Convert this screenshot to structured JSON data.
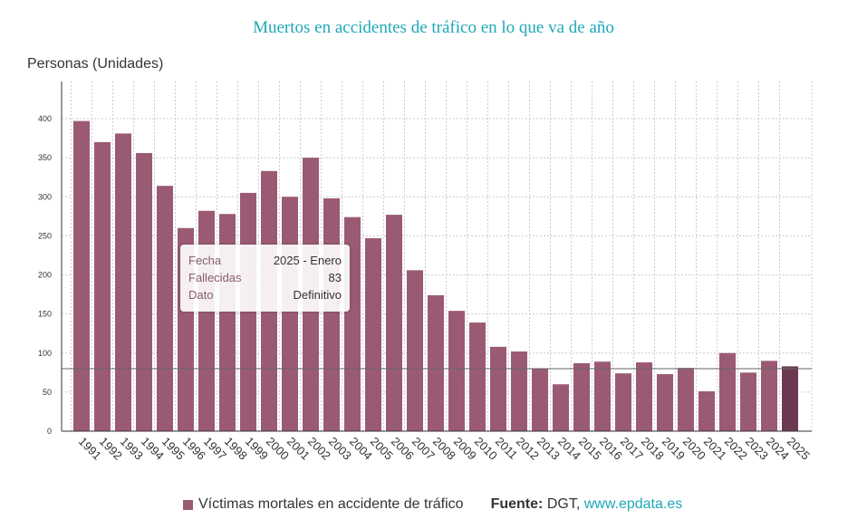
{
  "chart_data": {
    "type": "bar",
    "title": "Muertos en accidentes de tráfico en lo que va de año",
    "ylabel": "Personas (Unidades)",
    "xlabel": "",
    "ylim": [
      0,
      450
    ],
    "yticks": [
      0,
      50,
      100,
      150,
      200,
      250,
      300,
      350,
      400
    ],
    "grid": true,
    "categories": [
      "1991",
      "1992",
      "1993",
      "1994",
      "1995",
      "1996",
      "1997",
      "1998",
      "1999",
      "2000",
      "2001",
      "2002",
      "2003",
      "2004",
      "2005",
      "2006",
      "2007",
      "2008",
      "2009",
      "2010",
      "2011",
      "2012",
      "2013",
      "2014",
      "2015",
      "2016",
      "2017",
      "2018",
      "2019",
      "2020",
      "2021",
      "2022",
      "2023",
      "2024",
      "2025"
    ],
    "values": [
      397,
      370,
      381,
      356,
      314,
      260,
      282,
      278,
      305,
      333,
      300,
      350,
      298,
      274,
      247,
      277,
      206,
      174,
      154,
      139,
      108,
      102,
      80,
      60,
      87,
      89,
      74,
      88,
      73,
      81,
      51,
      100,
      75,
      90,
      83
    ],
    "reference_line": 80,
    "highlighted_category": "2025",
    "colors": {
      "bar": "#9a5a74",
      "highlight": "#6b3a52",
      "title": "#1fa8b8"
    },
    "series": [
      {
        "name": "Víctimas mortales en accidente de tráfico",
        "values": "see values"
      }
    ],
    "legend_position": "bottom"
  },
  "tooltip": {
    "rows": [
      {
        "k": "Fecha",
        "v": "2025 - Enero"
      },
      {
        "k": "Fallecidas",
        "v": "83"
      },
      {
        "k": "Dato",
        "v": "Definitivo"
      }
    ]
  },
  "legend": {
    "label": "Víctimas mortales en accidente de tráfico",
    "source_label": "Fuente:",
    "source": "DGT,",
    "link": "www.epdata.es"
  }
}
